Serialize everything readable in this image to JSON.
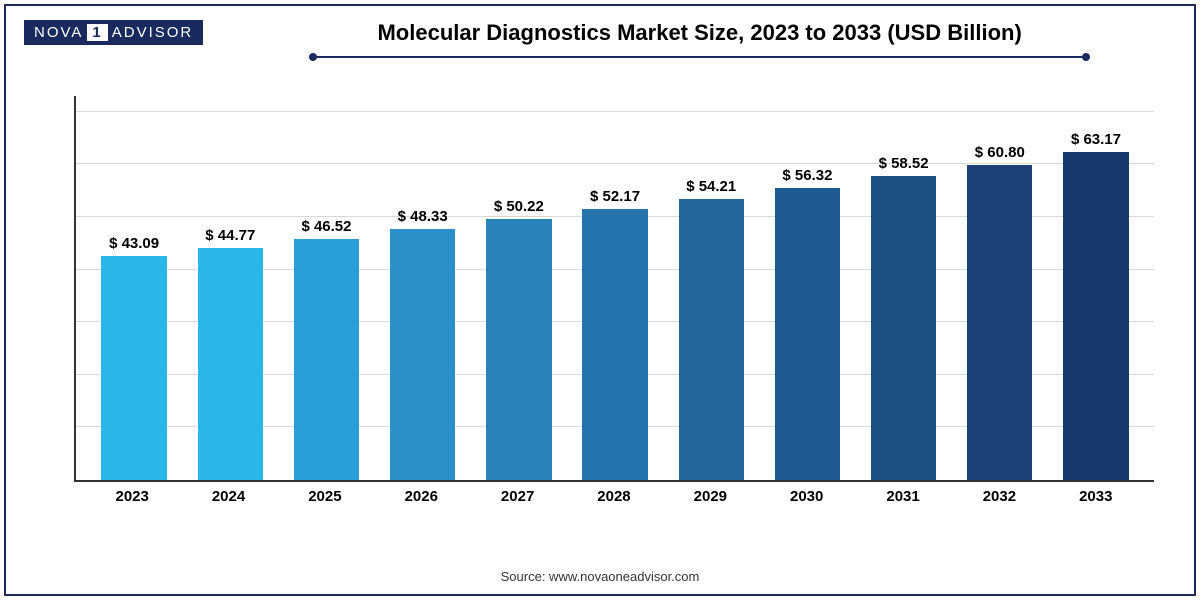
{
  "logo": {
    "part1": "NOVA",
    "part2": "1",
    "part3": "ADVISOR"
  },
  "title": "Molecular Diagnostics Market Size, 2023 to 2033 (USD Billion)",
  "source": "Source: www.novaoneadvisor.com",
  "chart": {
    "type": "bar",
    "value_prefix": "$ ",
    "y_max": 74,
    "grid_lines": 7,
    "grid_color": "#d9d9d9",
    "axis_color": "#333333",
    "background_color": "#ffffff",
    "label_fontsize": 15,
    "label_fontweight": "bold",
    "label_color": "#000000",
    "bar_width_pct": 68,
    "categories": [
      "2023",
      "2024",
      "2025",
      "2026",
      "2027",
      "2028",
      "2029",
      "2030",
      "2031",
      "2032",
      "2033"
    ],
    "values": [
      43.09,
      44.77,
      46.52,
      48.33,
      50.22,
      52.17,
      54.21,
      56.32,
      58.52,
      60.8,
      63.17
    ],
    "value_labels": [
      "43.09",
      "44.77",
      "46.52",
      "48.33",
      "50.22",
      "52.17",
      "54.21",
      "56.32",
      "58.52",
      "60.80",
      "63.17"
    ],
    "bar_colors": [
      "#2bb6e8",
      "#2bb6e8",
      "#289fd6",
      "#2a90c7",
      "#2a82bb",
      "#2674ae",
      "#23679f",
      "#205a92",
      "#1d4e84",
      "#1a4276",
      "#17396b"
    ]
  },
  "colors": {
    "frame_border": "#1a2a5e",
    "logo_bg": "#1a2a5e",
    "divider": "#1a2a5e"
  }
}
